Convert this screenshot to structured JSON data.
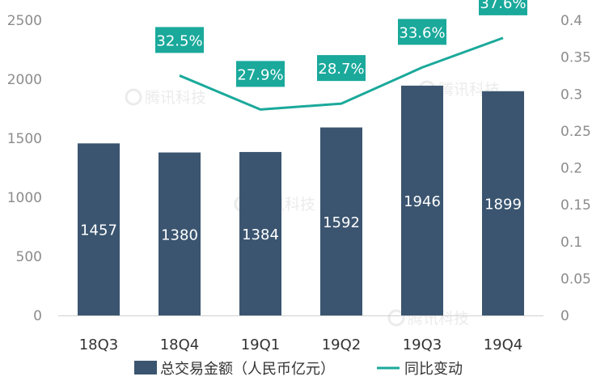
{
  "chart_data": {
    "type": "bar",
    "categories": [
      "18Q3",
      "18Q4",
      "19Q1",
      "19Q2",
      "19Q3",
      "19Q4"
    ],
    "series": [
      {
        "name": "总交易金额（人民币亿元）",
        "type": "bar",
        "axis": "left",
        "values": [
          1457,
          1380,
          1384,
          1592,
          1946,
          1899
        ],
        "labels": [
          "1457",
          "1380",
          "1384",
          "1592",
          "1946",
          "1899"
        ],
        "color": "#3b5570"
      },
      {
        "name": "同比变动",
        "type": "line",
        "axis": "right",
        "values": [
          null,
          0.325,
          0.279,
          0.287,
          0.336,
          0.376
        ],
        "labels": [
          "",
          "32.5%",
          "27.9%",
          "28.7%",
          "33.6%",
          "37.6%"
        ],
        "color": "#1aa99b"
      }
    ],
    "y_left": {
      "range": [
        0,
        2500
      ],
      "ticks": [
        "0",
        "500",
        "1000",
        "1500",
        "2000",
        "2500"
      ]
    },
    "y_right": {
      "range": [
        0,
        0.4
      ],
      "ticks": [
        "0",
        "0.05",
        "0.1",
        "0.15",
        "0.2",
        "0.25",
        "0.3",
        "0.35",
        "0.4"
      ]
    },
    "grid": false,
    "legend_position": "bottom",
    "title": "",
    "xlabel": "",
    "ylabel": "",
    "watermark": "腾讯科技"
  }
}
